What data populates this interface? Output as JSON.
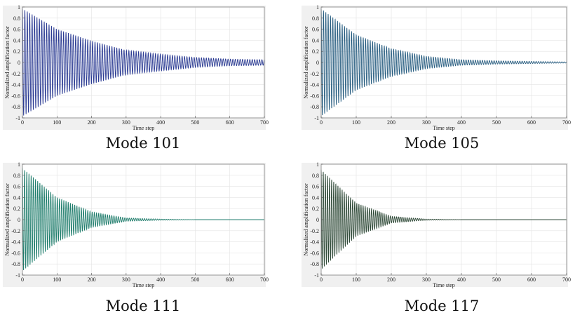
{
  "chart_data": [
    {
      "type": "line",
      "caption": "Mode 101",
      "xlabel": "Time step",
      "ylabel": "Normalized amplification factor",
      "xlim": [
        0,
        700
      ],
      "ylim": [
        -1,
        1
      ],
      "xticks": [
        0,
        100,
        200,
        300,
        400,
        500,
        600,
        700
      ],
      "yticks": [
        -1,
        -0.8,
        -0.6,
        -0.4,
        -0.2,
        0,
        0.2,
        0.4,
        0.6,
        0.8,
        1
      ],
      "grid": true,
      "color": "#2b3b93",
      "series": [
        {
          "envelope": {
            "x": [
              0,
              100,
              200,
              300,
              400,
              500,
              600,
              700
            ],
            "amplitude": [
              0.97,
              0.6,
              0.39,
              0.22,
              0.15,
              0.09,
              0.06,
              0.05
            ]
          },
          "cycles": 100
        }
      ]
    },
    {
      "type": "line",
      "caption": "Mode 105",
      "xlabel": "Time step",
      "ylabel": "Normalized amplification factor",
      "xlim": [
        0,
        700
      ],
      "ylim": [
        -1,
        1
      ],
      "xticks": [
        0,
        100,
        200,
        300,
        400,
        500,
        600,
        700
      ],
      "yticks": [
        -1,
        -0.8,
        -0.6,
        -0.4,
        -0.2,
        0,
        0.2,
        0.4,
        0.6,
        0.8,
        1
      ],
      "grid": true,
      "color": "#2a5f82",
      "series": [
        {
          "envelope": {
            "x": [
              0,
              100,
              200,
              300,
              400,
              500,
              600,
              700
            ],
            "amplitude": [
              0.97,
              0.5,
              0.25,
              0.11,
              0.05,
              0.03,
              0.02,
              0.01
            ]
          },
          "cycles": 105
        }
      ]
    },
    {
      "type": "line",
      "caption": "Mode 111",
      "xlabel": "Time step",
      "ylabel": "Normalized amplification factor",
      "xlim": [
        0,
        700
      ],
      "ylim": [
        -1,
        1
      ],
      "xticks": [
        0,
        100,
        200,
        300,
        400,
        500,
        600,
        700
      ],
      "yticks": [
        -1,
        -0.8,
        -0.6,
        -0.4,
        -0.2,
        0,
        0.2,
        0.4,
        0.6,
        0.8,
        1
      ],
      "grid": true,
      "color": "#1f7d6c",
      "series": [
        {
          "envelope": {
            "x": [
              0,
              100,
              200,
              300,
              400,
              500,
              600,
              700
            ],
            "amplitude": [
              0.93,
              0.4,
              0.14,
              0.03,
              0.01,
              0.0,
              0.0,
              0.0
            ]
          },
          "cycles": 111
        }
      ]
    },
    {
      "type": "line",
      "caption": "Mode 117",
      "xlabel": "Time step",
      "ylabel": "Normalized amplification factor",
      "xlim": [
        0,
        700
      ],
      "ylim": [
        -1,
        1
      ],
      "xticks": [
        0,
        100,
        200,
        300,
        400,
        500,
        600,
        700
      ],
      "yticks": [
        -1,
        -0.8,
        -0.6,
        -0.4,
        -0.2,
        0,
        0.2,
        0.4,
        0.6,
        0.8,
        1
      ],
      "grid": true,
      "color": "#2f4a38",
      "series": [
        {
          "envelope": {
            "x": [
              0,
              100,
              200,
              300,
              400,
              500,
              600,
              700
            ],
            "amplitude": [
              0.9,
              0.3,
              0.06,
              0.01,
              0.0,
              0.0,
              0.0,
              0.0
            ]
          },
          "cycles": 117
        }
      ]
    }
  ]
}
